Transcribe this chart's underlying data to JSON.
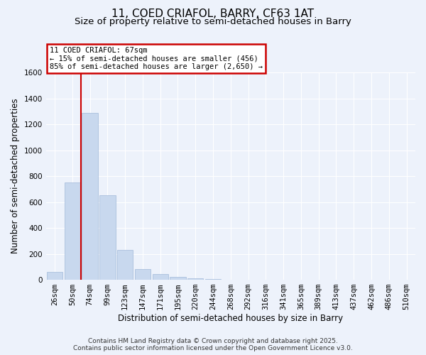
{
  "title": "11, COED CRIAFOL, BARRY, CF63 1AT",
  "subtitle": "Size of property relative to semi-detached houses in Barry",
  "xlabel": "Distribution of semi-detached houses by size in Barry",
  "ylabel": "Number of semi-detached properties",
  "categories": [
    "26sqm",
    "50sqm",
    "74sqm",
    "99sqm",
    "123sqm",
    "147sqm",
    "171sqm",
    "195sqm",
    "220sqm",
    "244sqm",
    "268sqm",
    "292sqm",
    "316sqm",
    "341sqm",
    "365sqm",
    "389sqm",
    "413sqm",
    "437sqm",
    "462sqm",
    "486sqm",
    "510sqm"
  ],
  "values": [
    60,
    750,
    1290,
    650,
    230,
    85,
    45,
    20,
    10,
    5,
    2,
    1,
    0,
    0,
    0,
    0,
    0,
    0,
    0,
    0,
    0
  ],
  "bar_color": "#c8d8ee",
  "bar_edge_color": "#a0b8d8",
  "vline_color": "#cc0000",
  "annotation_line1": "11 COED CRIAFOL: 67sqm",
  "annotation_line2": "← 15% of semi-detached houses are smaller (456)",
  "annotation_line3": "85% of semi-detached houses are larger (2,650) →",
  "annotation_box_color": "#ffffff",
  "annotation_box_edge_color": "#cc0000",
  "ylim": [
    0,
    1600
  ],
  "yticks": [
    0,
    200,
    400,
    600,
    800,
    1000,
    1200,
    1400,
    1600
  ],
  "footer_line1": "Contains HM Land Registry data © Crown copyright and database right 2025.",
  "footer_line2": "Contains public sector information licensed under the Open Government Licence v3.0.",
  "background_color": "#edf2fb",
  "plot_bg_color": "#edf2fb",
  "grid_color": "#ffffff",
  "title_fontsize": 11,
  "subtitle_fontsize": 9.5,
  "axis_label_fontsize": 8.5,
  "tick_fontsize": 7.5,
  "footer_fontsize": 6.5
}
